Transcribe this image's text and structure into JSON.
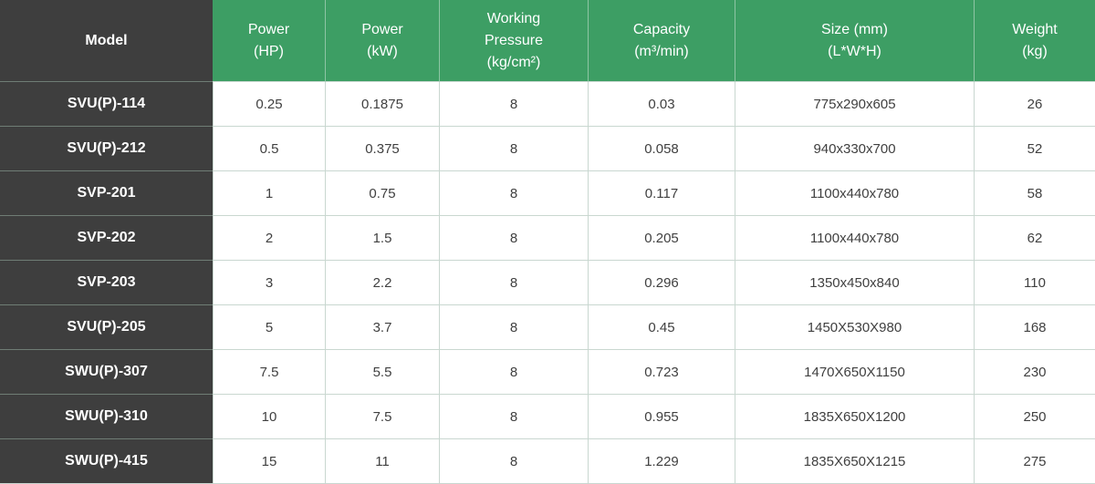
{
  "colors": {
    "header_green": "#3d9e64",
    "model_column_dark": "#3e3e3e",
    "cell_border": "#c9d7d0",
    "header_divider": "#8ec5a4",
    "dark_row_divider": "#6f7d75",
    "data_text": "#404040",
    "header_text": "#ffffff"
  },
  "table": {
    "columns": [
      {
        "id": "model",
        "label": "Model"
      },
      {
        "id": "power_hp",
        "label": "Power\n(HP)"
      },
      {
        "id": "power_kw",
        "label": "Power\n(kW)"
      },
      {
        "id": "working_pressure",
        "label": "Working\nPressure\n(kg/cm²)"
      },
      {
        "id": "capacity",
        "label": "Capacity\n(m³/min)"
      },
      {
        "id": "size",
        "label": "Size (mm)\n(L*W*H)"
      },
      {
        "id": "weight",
        "label": "Weight\n(kg)"
      }
    ],
    "rows": [
      {
        "model": "SVU(P)-114",
        "power_hp": "0.25",
        "power_kw": "0.1875",
        "working_pressure": "8",
        "capacity": "0.03",
        "size": "775x290x605",
        "weight": "26"
      },
      {
        "model": "SVU(P)-212",
        "power_hp": "0.5",
        "power_kw": "0.375",
        "working_pressure": "8",
        "capacity": "0.058",
        "size": "940x330x700",
        "weight": "52"
      },
      {
        "model": "SVP-201",
        "power_hp": "1",
        "power_kw": "0.75",
        "working_pressure": "8",
        "capacity": "0.117",
        "size": "1100x440x780",
        "weight": "58"
      },
      {
        "model": "SVP-202",
        "power_hp": "2",
        "power_kw": "1.5",
        "working_pressure": "8",
        "capacity": "0.205",
        "size": "1100x440x780",
        "weight": "62"
      },
      {
        "model": "SVP-203",
        "power_hp": "3",
        "power_kw": "2.2",
        "working_pressure": "8",
        "capacity": "0.296",
        "size": "1350x450x840",
        "weight": "110"
      },
      {
        "model": "SVU(P)-205",
        "power_hp": "5",
        "power_kw": "3.7",
        "working_pressure": "8",
        "capacity": "0.45",
        "size": "1450X530X980",
        "weight": "168"
      },
      {
        "model": "SWU(P)-307",
        "power_hp": "7.5",
        "power_kw": "5.5",
        "working_pressure": "8",
        "capacity": "0.723",
        "size": "1470X650X1150",
        "weight": "230"
      },
      {
        "model": "SWU(P)-310",
        "power_hp": "10",
        "power_kw": "7.5",
        "working_pressure": "8",
        "capacity": "0.955",
        "size": "1835X650X1200",
        "weight": "250"
      },
      {
        "model": "SWU(P)-415",
        "power_hp": "15",
        "power_kw": "11",
        "working_pressure": "8",
        "capacity": "1.229",
        "size": "1835X650X1215",
        "weight": "275"
      }
    ]
  }
}
